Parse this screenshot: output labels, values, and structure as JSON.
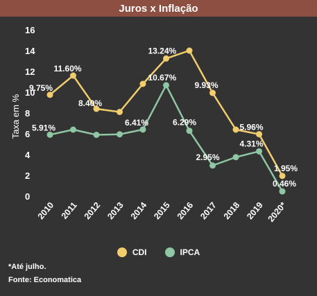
{
  "chart_data": {
    "type": "line",
    "title": "Juros x Inflação",
    "ylabel": "Taxa em %",
    "ylim": [
      0,
      16
    ],
    "yticks": [
      0,
      2,
      4,
      6,
      8,
      10,
      12,
      14,
      16
    ],
    "categories": [
      "2010",
      "2011",
      "2012",
      "2013",
      "2014",
      "2015",
      "2016",
      "2017",
      "2018",
      "2019",
      "2020*"
    ],
    "grid": false,
    "legend_position": "bottom",
    "series": [
      {
        "name": "CDI",
        "color": "#f2cd6e",
        "values": [
          9.75,
          11.6,
          8.4,
          8.1,
          10.8,
          13.24,
          14.0,
          9.93,
          6.4,
          5.96,
          1.95
        ],
        "labels": [
          "9.75%",
          "11.60%",
          "8.40%",
          "",
          "",
          "13.24%",
          "",
          "9.93%",
          "",
          "5.96%",
          "1.95%"
        ]
      },
      {
        "name": "IPCA",
        "color": "#8fc7a4",
        "values": [
          5.91,
          6.4,
          5.9,
          5.95,
          6.41,
          10.67,
          6.29,
          2.95,
          3.75,
          4.31,
          0.46
        ],
        "labels": [
          "5.91%",
          "",
          "",
          "",
          "6.41%",
          "10.67%",
          "6.29%",
          "2.95%",
          "",
          "4.31%",
          "0.46%"
        ]
      }
    ]
  },
  "notes": {
    "footnote": "*Até julho.",
    "source": "Fonte: Economatica"
  }
}
